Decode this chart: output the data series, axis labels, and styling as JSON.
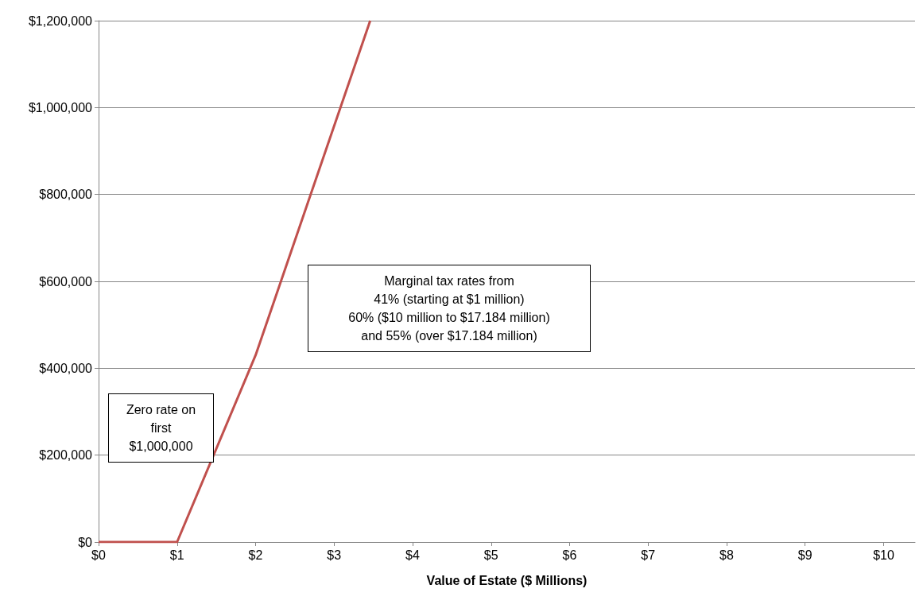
{
  "chart_data": {
    "type": "line",
    "xlabel": "Value of Estate ($ Millions)",
    "x": [
      0,
      1,
      2,
      3.46
    ],
    "series": [
      {
        "color": "#c0504d",
        "values": [
          0,
          0,
          430000,
          1200000
        ]
      }
    ],
    "xlim": [
      0,
      10.4
    ],
    "xticks": [
      {
        "value": 0,
        "label": "$0"
      },
      {
        "value": 1,
        "label": "$1"
      },
      {
        "value": 2,
        "label": "$2"
      },
      {
        "value": 3,
        "label": "$3"
      },
      {
        "value": 4,
        "label": "$4"
      },
      {
        "value": 5,
        "label": "$5"
      },
      {
        "value": 6,
        "label": "$6"
      },
      {
        "value": 7,
        "label": "$7"
      },
      {
        "value": 8,
        "label": "$8"
      },
      {
        "value": 9,
        "label": "$9"
      },
      {
        "value": 10,
        "label": "$10"
      }
    ],
    "ylim": [
      0,
      1200000
    ],
    "yticks": [
      {
        "value": 0,
        "label": "$0"
      },
      {
        "value": 200000,
        "label": "$200,000"
      },
      {
        "value": 400000,
        "label": "$400,000"
      },
      {
        "value": 600000,
        "label": "$600,000"
      },
      {
        "value": 800000,
        "label": "$800,000"
      },
      {
        "value": 1000000,
        "label": "$1,000,000"
      },
      {
        "value": 1200000,
        "label": "$1,200,000"
      }
    ],
    "grid": "y",
    "marker": "none",
    "line_style": "solid",
    "annotations": [
      "Zero rate on\nfirst\n$1,000,000",
      "Marginal tax rates from\n41% (starting at $1 million)\n60% ($10 million to $17.184 million)\nand 55% (over $17.184 million)"
    ]
  }
}
